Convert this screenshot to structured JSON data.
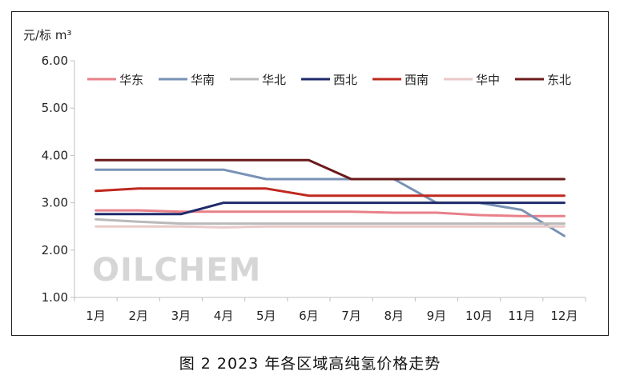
{
  "caption": "图 2  2023 年各区域高纯氢价格走势",
  "watermark": "OILCHEM",
  "chart_data": {
    "type": "line",
    "ylabel": "元/标 m³",
    "ylim": [
      1.0,
      6.0
    ],
    "yticks": [
      "1.00",
      "2.00",
      "3.00",
      "4.00",
      "5.00",
      "6.00"
    ],
    "categories": [
      "1月",
      "2月",
      "3月",
      "4月",
      "5月",
      "6月",
      "7月",
      "8月",
      "9月",
      "10月",
      "11月",
      "12月"
    ],
    "grid": false,
    "legend_position": "top",
    "series": [
      {
        "name": "华东",
        "color": "#e8808a",
        "values": [
          2.84,
          2.84,
          2.81,
          2.81,
          2.81,
          2.81,
          2.81,
          2.79,
          2.79,
          2.74,
          2.72,
          2.72
        ]
      },
      {
        "name": "华南",
        "color": "#7892b5",
        "values": [
          3.7,
          3.7,
          3.7,
          3.7,
          3.5,
          3.5,
          3.5,
          3.5,
          3.0,
          3.0,
          2.85,
          2.3
        ]
      },
      {
        "name": "华北",
        "color": "#b9b9b9",
        "values": [
          2.65,
          2.6,
          2.56,
          2.56,
          2.56,
          2.56,
          2.56,
          2.56,
          2.56,
          2.56,
          2.56,
          2.56
        ]
      },
      {
        "name": "西北",
        "color": "#1f2a6b",
        "values": [
          2.76,
          2.76,
          2.76,
          3.0,
          3.0,
          3.0,
          3.0,
          3.0,
          3.0,
          3.0,
          3.0,
          3.0
        ]
      },
      {
        "name": "西南",
        "color": "#c0281e",
        "values": [
          3.25,
          3.3,
          3.3,
          3.3,
          3.3,
          3.15,
          3.15,
          3.15,
          3.15,
          3.15,
          3.15,
          3.15
        ]
      },
      {
        "name": "华中",
        "color": "#e9c9c9",
        "values": [
          2.5,
          2.5,
          2.5,
          2.48,
          2.5,
          2.5,
          2.5,
          2.5,
          2.5,
          2.5,
          2.5,
          2.5
        ]
      },
      {
        "name": "东北",
        "color": "#6b1a1a",
        "values": [
          3.9,
          3.9,
          3.9,
          3.9,
          3.9,
          3.9,
          3.5,
          3.5,
          3.5,
          3.5,
          3.5,
          3.5
        ]
      }
    ]
  }
}
